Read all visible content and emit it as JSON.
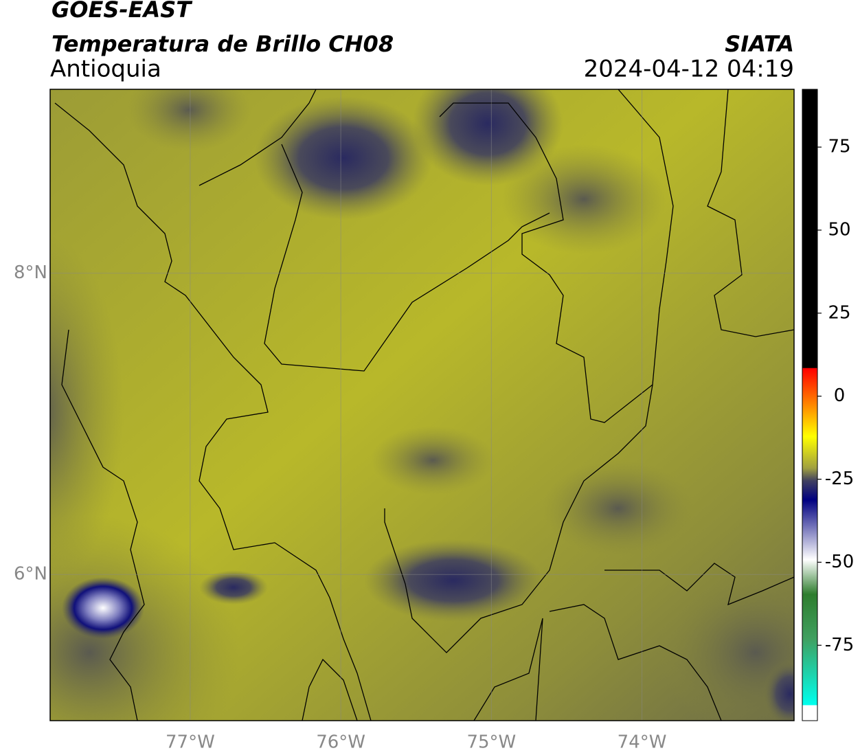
{
  "header": {
    "title": "GOES-EAST",
    "subtitle": "Temperatura de Brillo CH08",
    "region": "Antioquia",
    "organization": "SIATA",
    "timestamp": "2024-04-12 04:19"
  },
  "map": {
    "xlim": [
      -77.93,
      -72.99
    ],
    "ylim": [
      5.03,
      9.22
    ],
    "xticks": [
      {
        "value": -77,
        "label": "77°W"
      },
      {
        "value": -76,
        "label": "76°W"
      },
      {
        "value": -75,
        "label": "75°W"
      },
      {
        "value": -74,
        "label": "74°W"
      }
    ],
    "yticks": [
      {
        "value": 8,
        "label": "8°N"
      },
      {
        "value": 6,
        "label": "6°N"
      }
    ],
    "grid": true
  },
  "colorbar": {
    "lim": [
      -97.7,
      92.4
    ],
    "ticks": [
      75,
      50,
      25,
      0,
      -25,
      -50,
      -75
    ]
  }
}
